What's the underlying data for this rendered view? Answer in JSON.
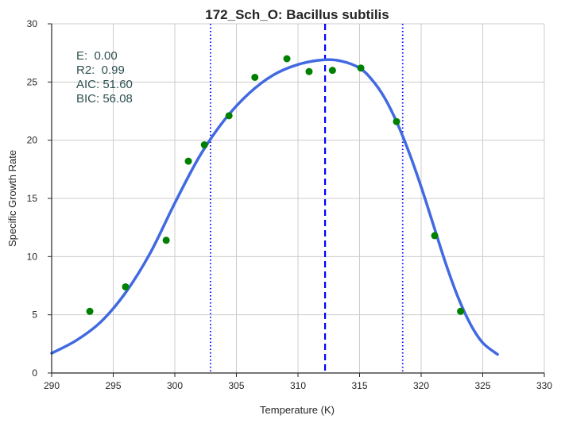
{
  "chart_data": {
    "type": "scatter",
    "title": "172_Sch_O: Bacillus subtilis",
    "xlabel": "Temperature (K)",
    "ylabel": "Specific Growth Rate",
    "xlim": [
      290,
      330
    ],
    "ylim": [
      0,
      30
    ],
    "xticks": [
      290,
      295,
      300,
      305,
      310,
      315,
      320,
      325,
      330
    ],
    "yticks": [
      0,
      5,
      10,
      15,
      20,
      25,
      30
    ],
    "grid": true,
    "points": {
      "color": "#008000",
      "x": [
        293.1,
        296.0,
        299.3,
        301.1,
        302.4,
        304.4,
        306.5,
        309.1,
        310.9,
        312.8,
        315.1,
        318.0,
        321.1,
        323.2
      ],
      "y": [
        5.3,
        7.4,
        11.4,
        18.2,
        19.6,
        22.1,
        25.4,
        27.0,
        25.9,
        26.0,
        26.2,
        21.6,
        11.8,
        5.3
      ]
    },
    "fit_curve": {
      "color": "#4169E1",
      "x": [
        290.0,
        292.0,
        294.0,
        296.0,
        298.0,
        300.0,
        302.0,
        304.0,
        306.0,
        308.0,
        310.0,
        312.0,
        313.5,
        315.0,
        316.0,
        317.0,
        318.0,
        319.0,
        320.0,
        321.0,
        322.0,
        323.0,
        324.0,
        325.0,
        326.2
      ],
      "y": [
        1.7,
        2.8,
        4.4,
        6.9,
        10.3,
        14.6,
        18.6,
        21.7,
        24.0,
        25.6,
        26.5,
        26.9,
        26.8,
        26.2,
        25.2,
        23.7,
        21.6,
        19.0,
        16.0,
        12.7,
        9.4,
        6.5,
        4.2,
        2.6,
        1.6
      ]
    },
    "vlines": [
      {
        "x": 312.2,
        "style": "dashed",
        "color": "#0000FF"
      },
      {
        "x": 302.9,
        "style": "dotted",
        "color": "#0000FF"
      },
      {
        "x": 318.5,
        "style": "dotted",
        "color": "#0000FF"
      }
    ],
    "stats": {
      "color": "#2F4F4F",
      "lines": [
        "E:  0.00",
        "R2:  0.99",
        "AIC: 51.60",
        "BIC: 56.08"
      ]
    }
  }
}
